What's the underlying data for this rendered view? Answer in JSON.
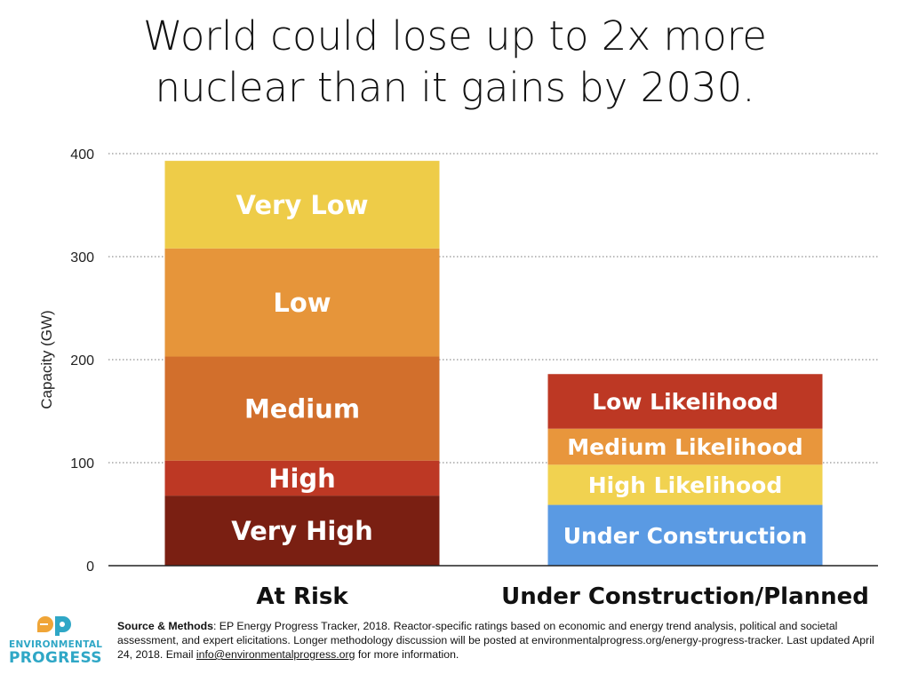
{
  "title_lines": [
    "World could lose up to 2x more",
    "nuclear than it gains by 2030."
  ],
  "chart_data": {
    "type": "bar",
    "stacked": true,
    "ylabel": "Capacity (GW)",
    "xlabel": "",
    "ylim": [
      0,
      400
    ],
    "yticks": [
      0,
      100,
      200,
      300,
      400
    ],
    "grid": true,
    "categories": [
      "At Risk",
      "Under Construction/Planned"
    ],
    "stacks": [
      {
        "category": "At Risk",
        "segments": [
          {
            "label": "Very High",
            "value": 68,
            "color": "#7a1f12"
          },
          {
            "label": "High",
            "value": 34,
            "color": "#bd3824"
          },
          {
            "label": "Medium",
            "value": 101,
            "color": "#d26f2c"
          },
          {
            "label": "Low",
            "value": 105,
            "color": "#e6953a"
          },
          {
            "label": "Very Low",
            "value": 85,
            "color": "#eecc48"
          }
        ]
      },
      {
        "category": "Under Construction/Planned",
        "segments": [
          {
            "label": "Under Construction",
            "value": 59,
            "color": "#5a9ae3"
          },
          {
            "label": "High Likelihood",
            "value": 39,
            "color": "#f1d250"
          },
          {
            "label": "Medium Likelihood",
            "value": 35,
            "color": "#e8963c"
          },
          {
            "label": "Low Likelihood",
            "value": 53,
            "color": "#bd3824"
          }
        ]
      }
    ]
  },
  "logo": {
    "line1": "ENVIRONMENTAL",
    "line2": "PROGRESS",
    "mark": "ep",
    "colors": [
      "#f0a537",
      "#2fa7c6"
    ]
  },
  "footer": {
    "source_label": "Source & Methods",
    "source_text": ": EP Energy Progress Tracker, 2018. Reactor-specific ratings based on economic and energy trend analysis, political and societal assessment, and expert elicitations. Longer methodology discussion will be posted at environmentalprogress.org/energy-progress-tracker. Last updated April 24, 2018. Email ",
    "email": "info@environmentalprogress.org",
    "tail": " for more information."
  }
}
